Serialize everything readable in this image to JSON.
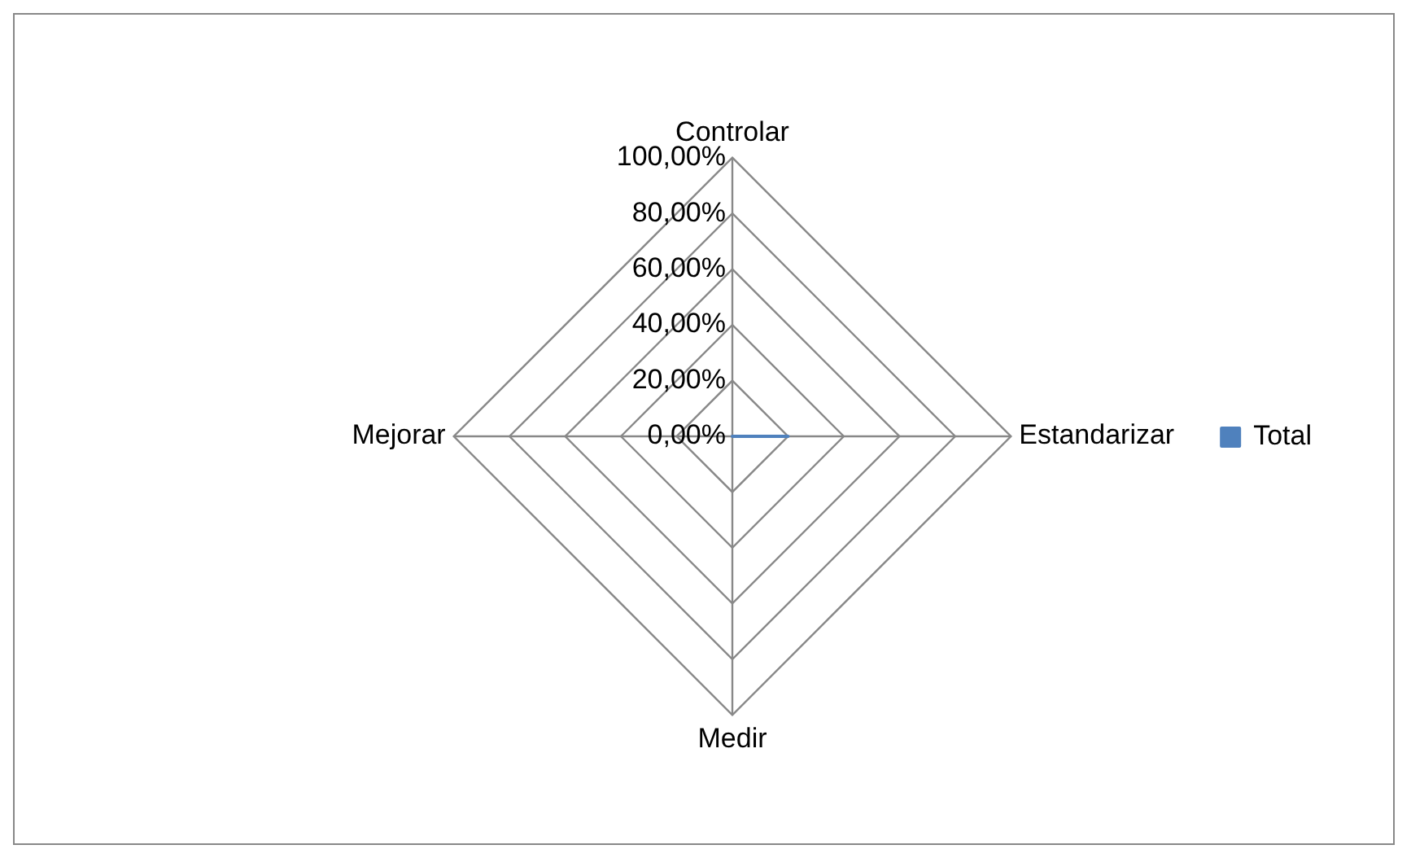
{
  "chart_data": {
    "type": "radar",
    "categories": [
      "Controlar",
      "Estandarizar",
      "Medir",
      "Mejorar"
    ],
    "series": [
      {
        "name": "Total",
        "color": "#4f81bd",
        "values": [
          0,
          20,
          0,
          0
        ]
      }
    ],
    "ylim": [
      0,
      100
    ],
    "yticks": [
      {
        "value": 0,
        "label": "0,00%"
      },
      {
        "value": 20,
        "label": "20,00%"
      },
      {
        "value": 40,
        "label": "40,00%"
      },
      {
        "value": 60,
        "label": "60,00%"
      },
      {
        "value": 80,
        "label": "80,00%"
      },
      {
        "value": 100,
        "label": "100,00%"
      }
    ],
    "grid": true,
    "legend": "right",
    "marker": "none"
  }
}
